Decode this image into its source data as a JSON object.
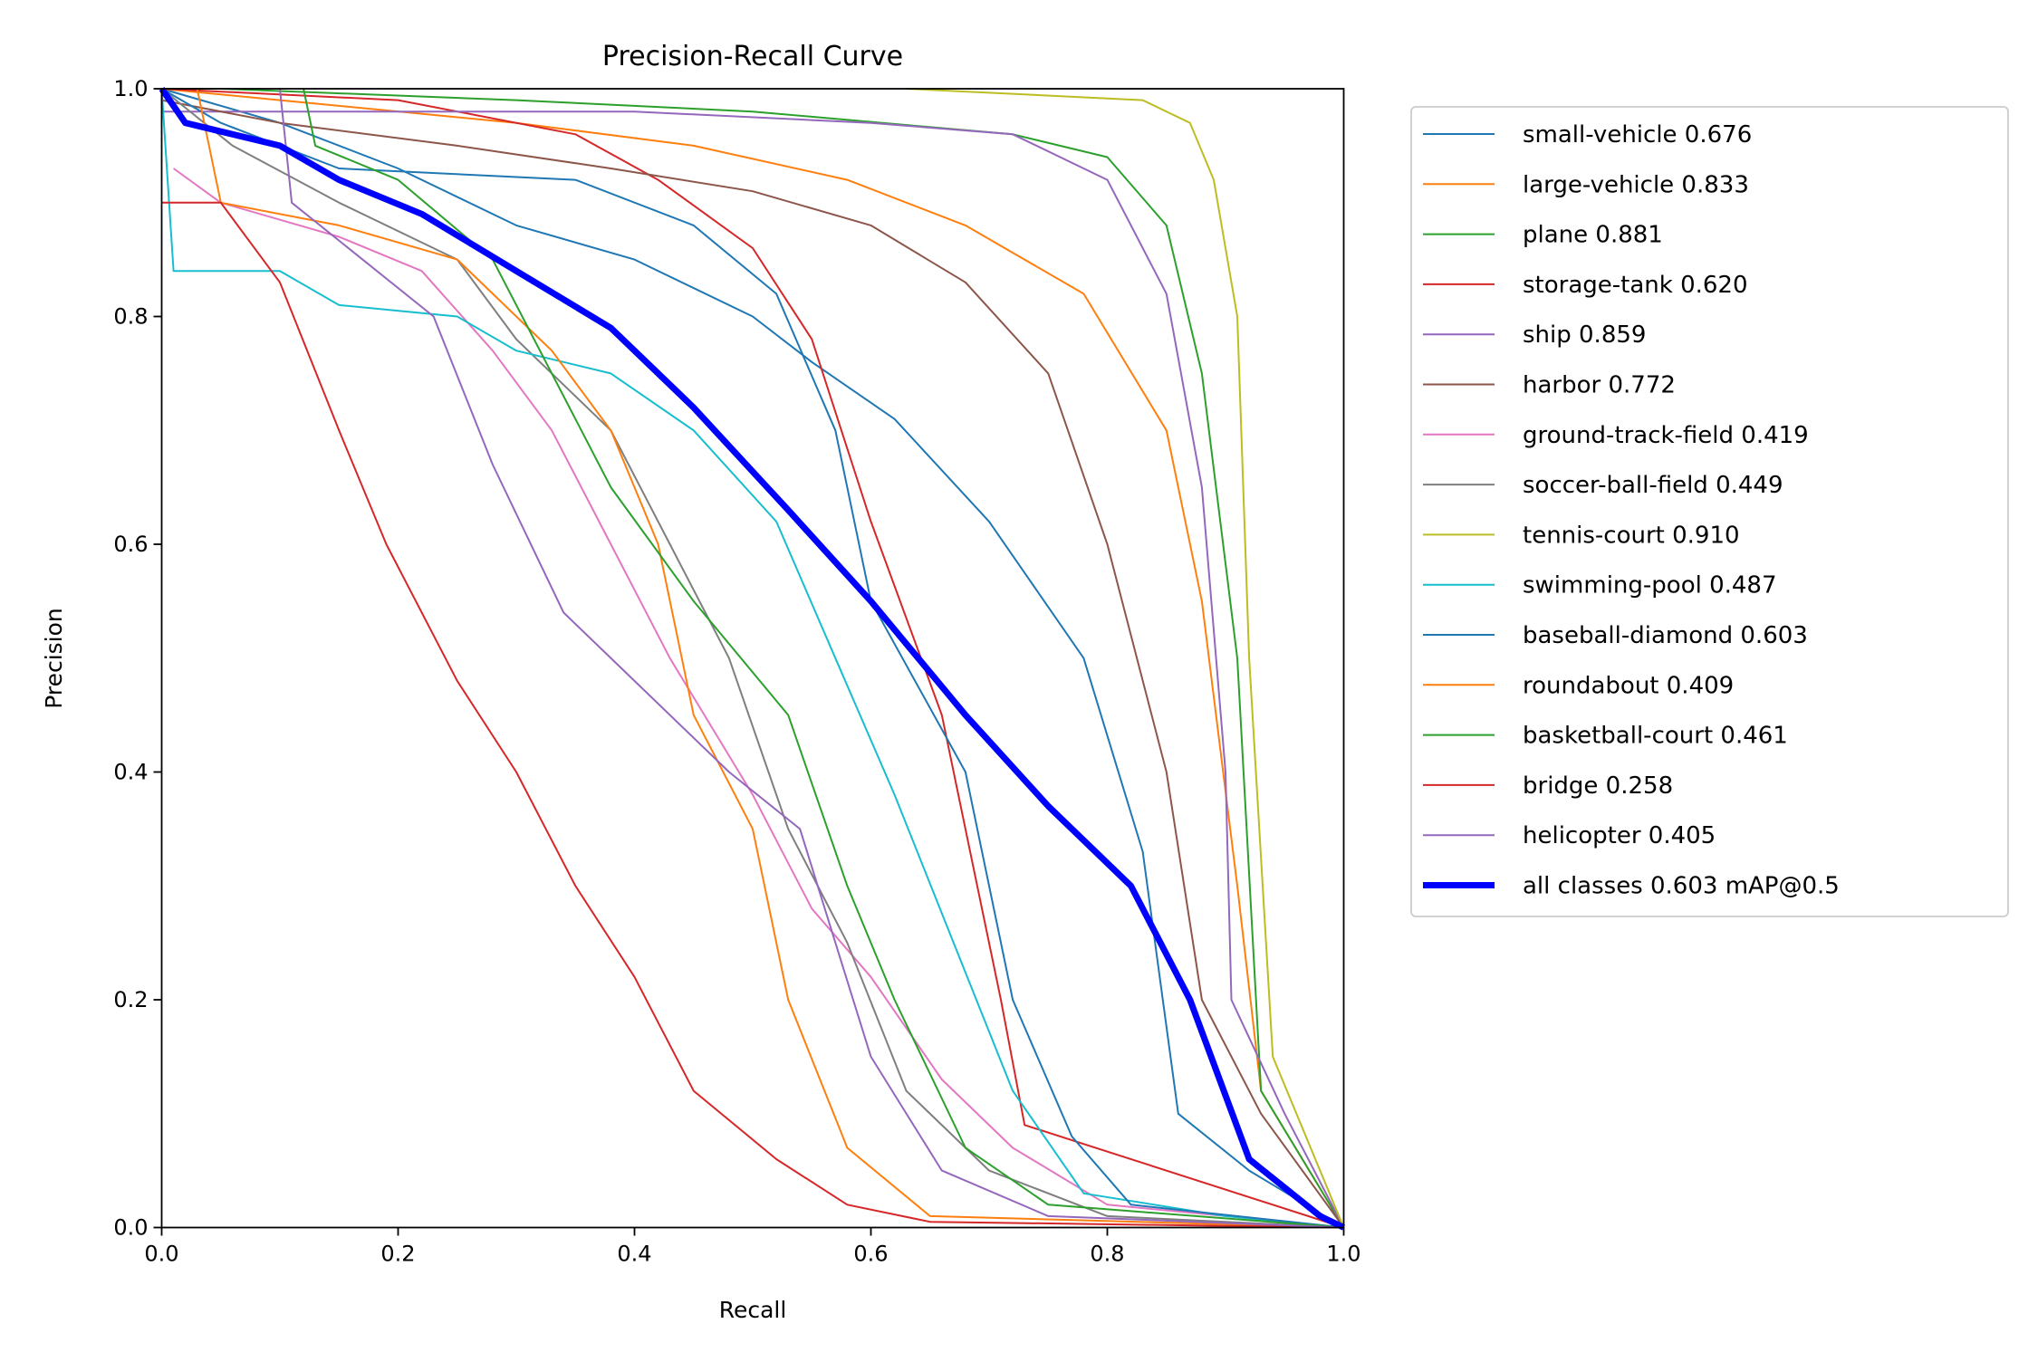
{
  "chart_data": {
    "type": "line",
    "title": "Precision-Recall Curve",
    "xlabel": "Recall",
    "ylabel": "Precision",
    "xlim": [
      0,
      1
    ],
    "ylim": [
      0,
      1
    ],
    "xticks": [
      "0.0",
      "0.2",
      "0.4",
      "0.6",
      "0.8",
      "1.0"
    ],
    "yticks": [
      "0.0",
      "0.2",
      "0.4",
      "0.6",
      "0.8",
      "1.0"
    ],
    "grid": false,
    "legend_placement": "outside-right",
    "series": [
      {
        "name": "small-vehicle 0.676",
        "color": "#1f77b4",
        "x": [
          0,
          0.1,
          0.2,
          0.3,
          0.4,
          0.5,
          0.55,
          0.62,
          0.7,
          0.78,
          0.83,
          0.86,
          0.92,
          1
        ],
        "y": [
          1,
          0.97,
          0.93,
          0.88,
          0.85,
          0.8,
          0.76,
          0.71,
          0.62,
          0.5,
          0.33,
          0.1,
          0.05,
          0
        ]
      },
      {
        "name": "large-vehicle 0.833",
        "color": "#ff7f0e",
        "x": [
          0,
          0.1,
          0.3,
          0.45,
          0.58,
          0.68,
          0.78,
          0.85,
          0.88,
          0.91,
          0.93,
          1
        ],
        "y": [
          1,
          0.99,
          0.97,
          0.95,
          0.92,
          0.88,
          0.82,
          0.7,
          0.55,
          0.3,
          0.12,
          0
        ]
      },
      {
        "name": "plane 0.881",
        "color": "#2ca02c",
        "x": [
          0,
          0.05,
          0.3,
          0.5,
          0.72,
          0.8,
          0.85,
          0.88,
          0.91,
          0.93,
          1
        ],
        "y": [
          1,
          1,
          0.99,
          0.98,
          0.96,
          0.94,
          0.88,
          0.75,
          0.5,
          0.12,
          0
        ]
      },
      {
        "name": "storage-tank 0.620",
        "color": "#d62728",
        "x": [
          0,
          0.2,
          0.35,
          0.42,
          0.5,
          0.55,
          0.6,
          0.66,
          0.69,
          0.71,
          0.73,
          1
        ],
        "y": [
          1,
          0.99,
          0.96,
          0.92,
          0.86,
          0.78,
          0.62,
          0.45,
          0.3,
          0.2,
          0.09,
          0
        ]
      },
      {
        "name": "ship 0.859",
        "color": "#9467bd",
        "x": [
          0,
          0.4,
          0.6,
          0.72,
          0.8,
          0.85,
          0.88,
          0.9,
          0.905,
          0.95,
          1
        ],
        "y": [
          0.98,
          0.98,
          0.97,
          0.96,
          0.92,
          0.82,
          0.65,
          0.4,
          0.2,
          0.1,
          0
        ]
      },
      {
        "name": "harbor 0.772",
        "color": "#8c564b",
        "x": [
          0,
          0.1,
          0.25,
          0.38,
          0.5,
          0.6,
          0.68,
          0.75,
          0.8,
          0.85,
          0.88,
          0.93,
          1
        ],
        "y": [
          0.99,
          0.97,
          0.95,
          0.93,
          0.91,
          0.88,
          0.83,
          0.75,
          0.6,
          0.4,
          0.2,
          0.1,
          0
        ]
      },
      {
        "name": "ground-track-field 0.419",
        "color": "#e377c2",
        "x": [
          0.01,
          0.05,
          0.15,
          0.22,
          0.28,
          0.33,
          0.38,
          0.43,
          0.5,
          0.55,
          0.6,
          0.66,
          0.72,
          0.8,
          1
        ],
        "y": [
          0.93,
          0.9,
          0.87,
          0.84,
          0.77,
          0.7,
          0.6,
          0.5,
          0.38,
          0.28,
          0.22,
          0.13,
          0.07,
          0.02,
          0
        ]
      },
      {
        "name": "soccer-ball-field 0.449",
        "color": "#7f7f7f",
        "x": [
          0,
          0.06,
          0.15,
          0.25,
          0.3,
          0.38,
          0.43,
          0.48,
          0.53,
          0.58,
          0.63,
          0.7,
          0.8,
          1
        ],
        "y": [
          1,
          0.95,
          0.9,
          0.85,
          0.78,
          0.7,
          0.6,
          0.5,
          0.35,
          0.25,
          0.12,
          0.05,
          0.01,
          0
        ]
      },
      {
        "name": "tennis-court 0.910",
        "color": "#bcbd22",
        "x": [
          0.63,
          0.83,
          0.87,
          0.89,
          0.91,
          0.92,
          0.94,
          1
        ],
        "y": [
          1,
          0.99,
          0.97,
          0.92,
          0.8,
          0.5,
          0.15,
          0
        ]
      },
      {
        "name": "swimming-pool 0.487",
        "color": "#17becf",
        "x": [
          0,
          0.01,
          0.1,
          0.15,
          0.25,
          0.3,
          0.38,
          0.45,
          0.52,
          0.57,
          0.62,
          0.67,
          0.72,
          0.78,
          0.9,
          1
        ],
        "y": [
          1,
          0.84,
          0.84,
          0.81,
          0.8,
          0.77,
          0.75,
          0.7,
          0.62,
          0.5,
          0.38,
          0.25,
          0.12,
          0.03,
          0.01,
          0
        ]
      },
      {
        "name": "baseball-diamond 0.603",
        "color": "#1f77b4",
        "x": [
          0,
          0.05,
          0.15,
          0.35,
          0.45,
          0.52,
          0.57,
          0.6,
          0.68,
          0.72,
          0.77,
          0.82,
          1
        ],
        "y": [
          1,
          0.97,
          0.93,
          0.92,
          0.88,
          0.82,
          0.7,
          0.55,
          0.4,
          0.2,
          0.08,
          0.02,
          0
        ]
      },
      {
        "name": "roundabout 0.409",
        "color": "#ff7f0e",
        "x": [
          0.03,
          0.05,
          0.15,
          0.25,
          0.33,
          0.38,
          0.42,
          0.45,
          0.5,
          0.53,
          0.58,
          0.65,
          1
        ],
        "y": [
          1,
          0.9,
          0.88,
          0.85,
          0.77,
          0.7,
          0.6,
          0.45,
          0.35,
          0.2,
          0.07,
          0.01,
          0
        ]
      },
      {
        "name": "basketball-court 0.461",
        "color": "#2ca02c",
        "x": [
          0.12,
          0.13,
          0.2,
          0.28,
          0.33,
          0.38,
          0.45,
          0.53,
          0.58,
          0.62,
          0.68,
          0.75,
          1
        ],
        "y": [
          1,
          0.95,
          0.92,
          0.85,
          0.75,
          0.65,
          0.55,
          0.45,
          0.3,
          0.2,
          0.07,
          0.02,
          0
        ]
      },
      {
        "name": "bridge 0.258",
        "color": "#d62728",
        "x": [
          0,
          0.05,
          0.1,
          0.15,
          0.19,
          0.25,
          0.3,
          0.35,
          0.4,
          0.45,
          0.52,
          0.58,
          0.65,
          1
        ],
        "y": [
          0.9,
          0.9,
          0.83,
          0.7,
          0.6,
          0.48,
          0.4,
          0.3,
          0.22,
          0.12,
          0.06,
          0.02,
          0.005,
          0
        ]
      },
      {
        "name": "helicopter 0.405",
        "color": "#9467bd",
        "x": [
          0.1,
          0.11,
          0.23,
          0.28,
          0.34,
          0.4,
          0.48,
          0.54,
          0.6,
          0.66,
          0.75,
          1
        ],
        "y": [
          1,
          0.9,
          0.8,
          0.67,
          0.54,
          0.48,
          0.4,
          0.35,
          0.15,
          0.05,
          0.01,
          0
        ]
      },
      {
        "name": "all classes 0.603 mAP@0.5",
        "color": "#0000ff",
        "thick": true,
        "x": [
          0,
          0.02,
          0.1,
          0.15,
          0.22,
          0.3,
          0.38,
          0.45,
          0.53,
          0.6,
          0.68,
          0.75,
          0.82,
          0.87,
          0.92,
          0.98,
          1
        ],
        "y": [
          1,
          0.97,
          0.95,
          0.92,
          0.89,
          0.84,
          0.79,
          0.72,
          0.63,
          0.55,
          0.45,
          0.37,
          0.3,
          0.2,
          0.06,
          0.01,
          0
        ]
      }
    ]
  }
}
